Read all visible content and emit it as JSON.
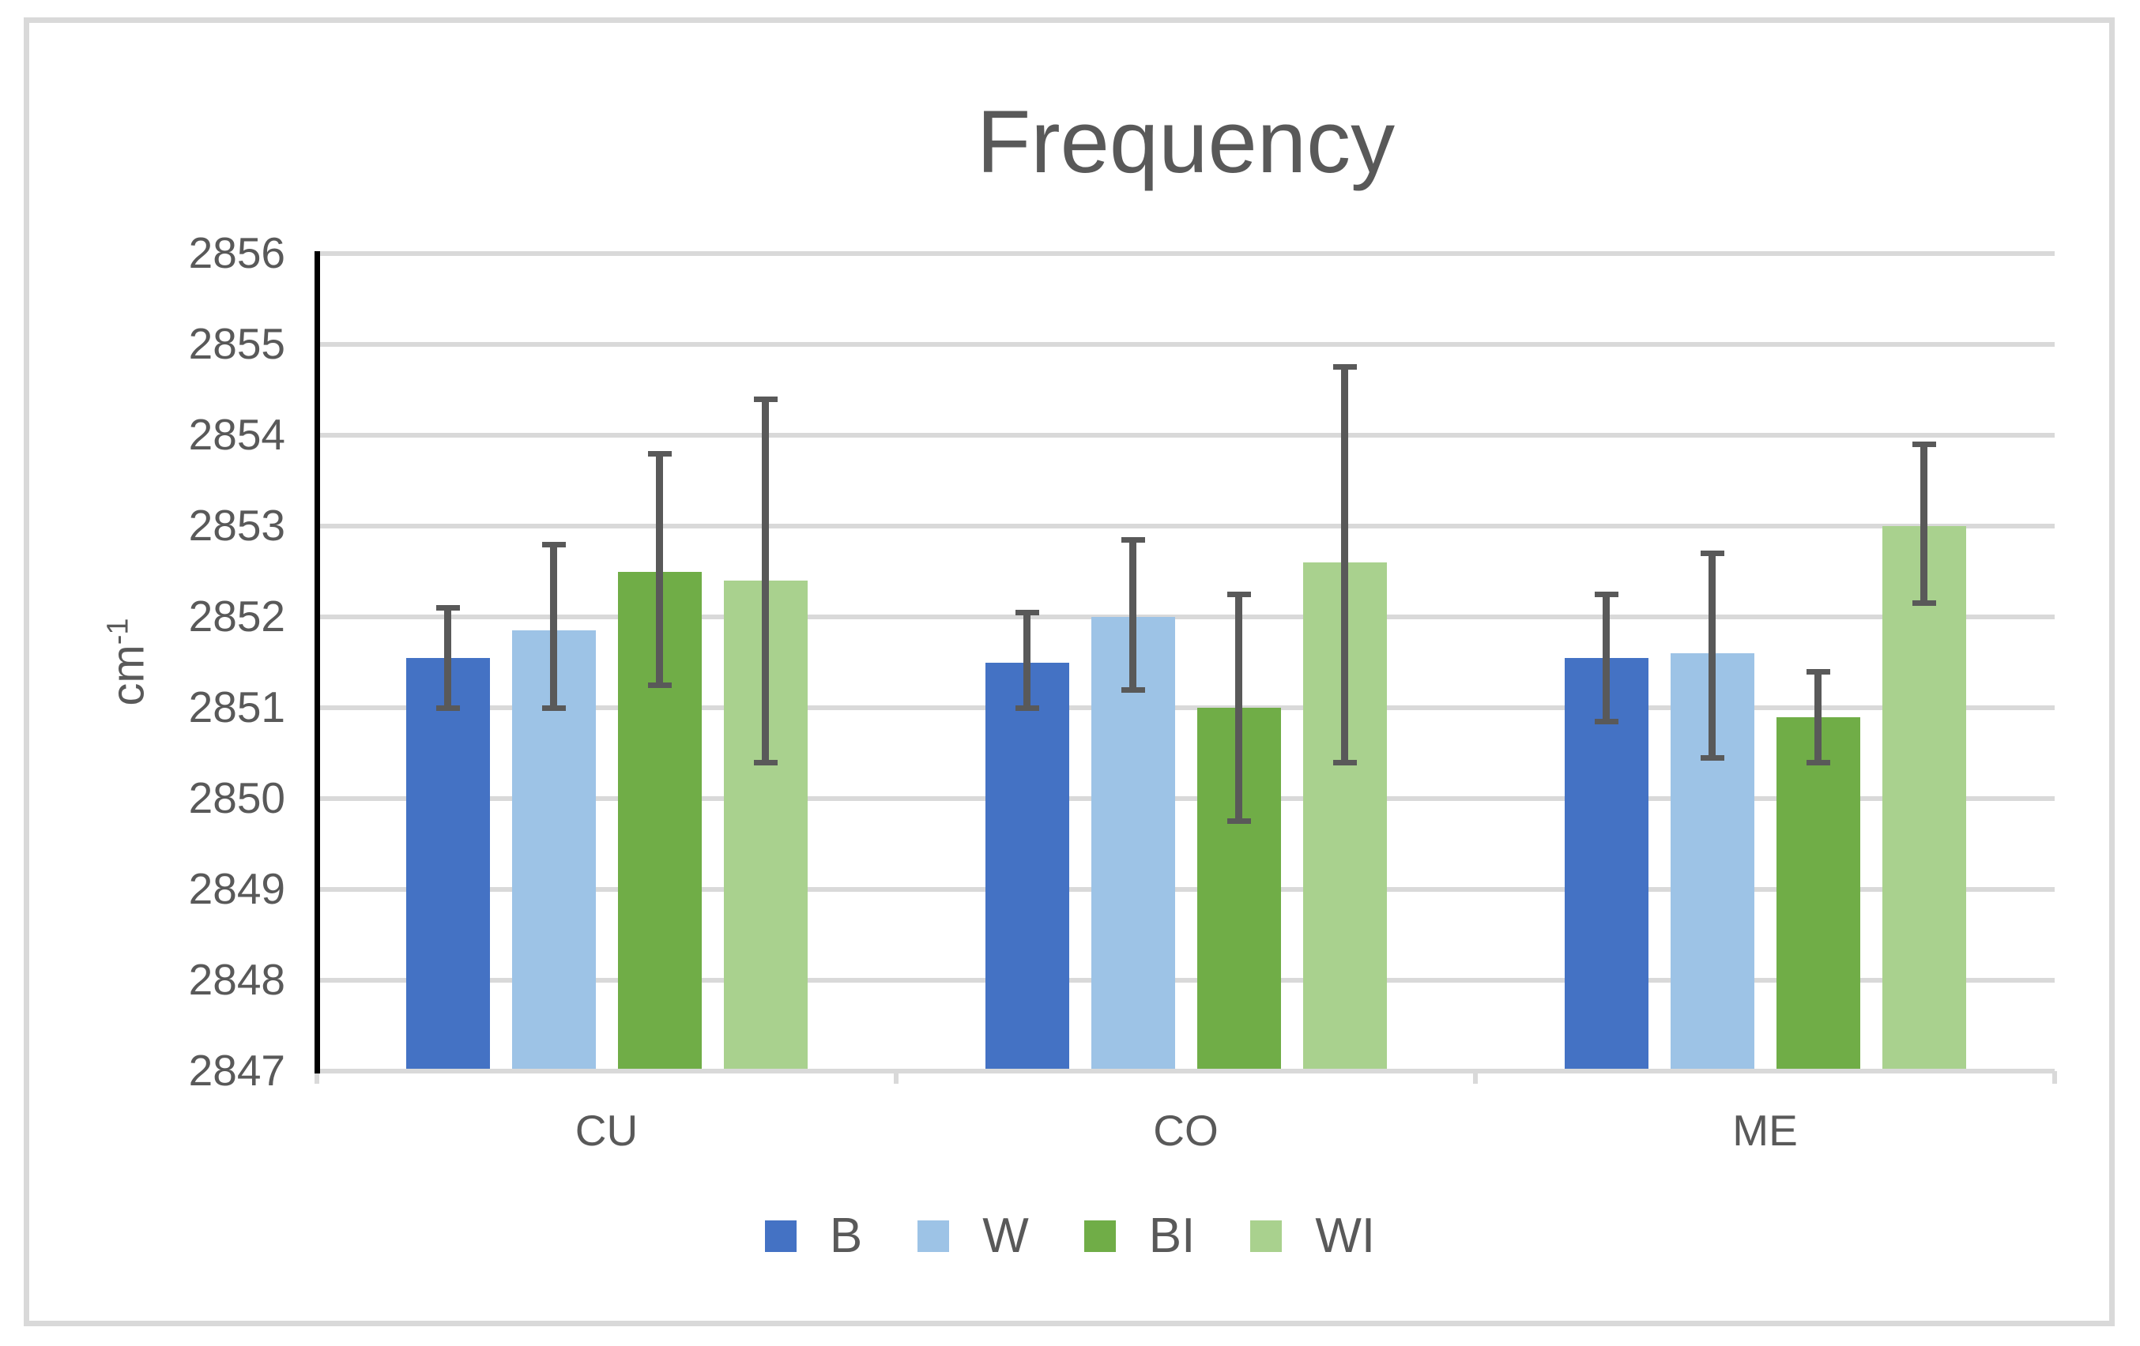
{
  "chart_data": {
    "type": "bar",
    "title": "Frequency",
    "ylabel": {
      "base": "cm",
      "superscript": "-1"
    },
    "xlabel": "",
    "categories": [
      "CU",
      "CO",
      "ME"
    ],
    "series": [
      {
        "name": "B",
        "color": "#4472C4",
        "values": [
          2851.55,
          2851.5,
          2851.55
        ],
        "error_low": [
          2851.0,
          2851.0,
          2850.85
        ],
        "error_high": [
          2852.1,
          2852.05,
          2852.25
        ]
      },
      {
        "name": "W",
        "color": "#9DC3E6",
        "values": [
          2851.85,
          2852.0,
          2851.6
        ],
        "error_low": [
          2851.0,
          2851.2,
          2850.45
        ],
        "error_high": [
          2852.8,
          2852.85,
          2852.7
        ]
      },
      {
        "name": "BI",
        "color": "#70AD47",
        "values": [
          2852.5,
          2851.0,
          2850.9
        ],
        "error_low": [
          2851.25,
          2849.75,
          2850.4
        ],
        "error_high": [
          2853.8,
          2852.25,
          2851.4
        ]
      },
      {
        "name": "WI",
        "color": "#A9D18E",
        "values": [
          2852.4,
          2852.6,
          2853.0
        ],
        "error_low": [
          2850.4,
          2850.4,
          2852.15
        ],
        "error_high": [
          2854.4,
          2854.75,
          2853.9
        ]
      }
    ],
    "ylim": [
      2847,
      2856
    ],
    "yticks": [
      2856,
      2855,
      2854,
      2853,
      2852,
      2851,
      2850,
      2849,
      2848,
      2847
    ],
    "grid": true,
    "legend_position": "bottom",
    "colors": {
      "text": "#595959",
      "gridline": "#D9D9D9",
      "y_axis_line": "#000000",
      "x_axis_line": "#D9D9D9",
      "error_bar": "#595959",
      "frame_border": "#D9D9D9",
      "background": "#FFFFFF"
    }
  }
}
